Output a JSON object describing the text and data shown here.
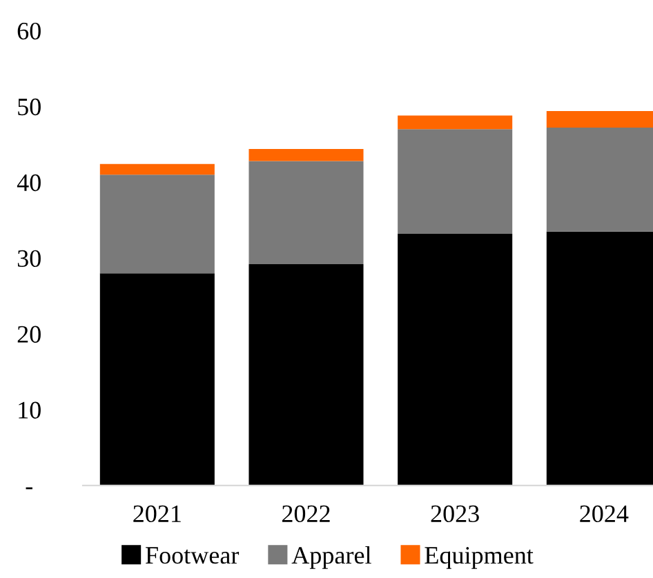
{
  "chart_data": {
    "type": "bar",
    "stacked": true,
    "categories": [
      "2021",
      "2022",
      "2023",
      "2024"
    ],
    "series": [
      {
        "name": "Footwear",
        "color": "#000000",
        "values": [
          28.0,
          29.2,
          33.2,
          33.5
        ]
      },
      {
        "name": "Apparel",
        "color": "#7a7a7a",
        "values": [
          13.0,
          13.6,
          13.8,
          13.7
        ]
      },
      {
        "name": "Equipment",
        "color": "#ff6600",
        "values": [
          1.4,
          1.6,
          1.8,
          2.2
        ]
      }
    ],
    "ylim": [
      0,
      60
    ],
    "yticks": [
      {
        "value": 0,
        "label": "-"
      },
      10,
      20,
      30,
      40,
      50,
      60
    ],
    "grid": false,
    "legend": "bottom"
  }
}
